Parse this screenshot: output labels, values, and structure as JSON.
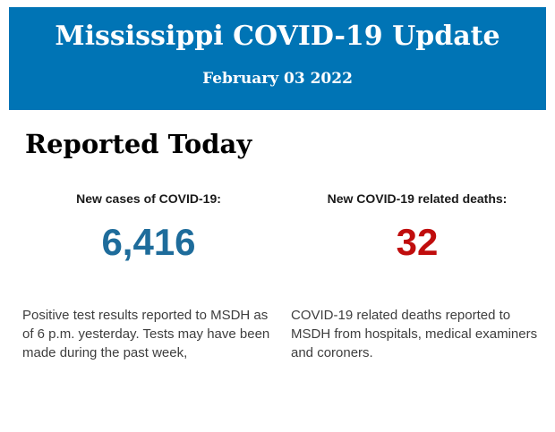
{
  "page": {
    "header": {
      "title": "Mississippi COVID-19 Update",
      "date": "February 03 2022",
      "background_color": "#0074b5",
      "text_color": "#ffffff"
    },
    "section_title": "Reported Today",
    "stats": [
      {
        "label": "New cases of COVID-19:",
        "value": "6,416",
        "value_color": "#1e6c9b",
        "description": "Positive test results reported to MSDH as of 6 p.m. yesterday. Tests may have been made during the past week,"
      },
      {
        "label": "New COVID-19 related deaths:",
        "value": "32",
        "value_color": "#c00d0d",
        "description": "COVID-19 related deaths reported to MSDH from hospitals, medical examiners and coroners."
      }
    ]
  }
}
